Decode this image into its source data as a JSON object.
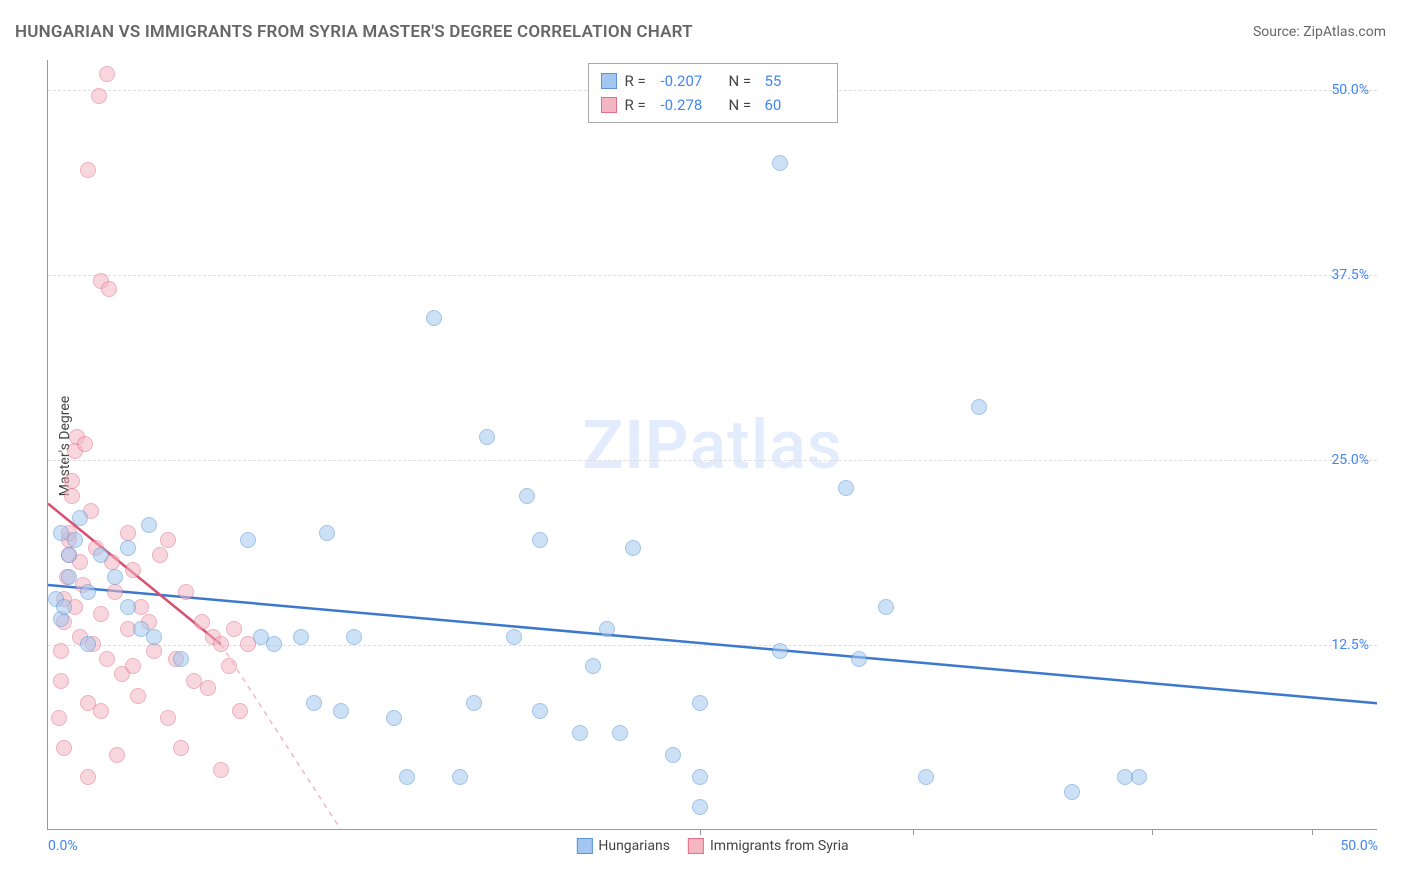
{
  "title": "HUNGARIAN VS IMMIGRANTS FROM SYRIA MASTER'S DEGREE CORRELATION CHART",
  "source": "Source: ZipAtlas.com",
  "watermark": "ZIPatlas",
  "y_axis_label": "Master's Degree",
  "chart": {
    "type": "scatter",
    "background_color": "#ffffff",
    "grid_color": "#dddddd",
    "axis_color": "#999999",
    "label_color": "#4285f4",
    "xlim": [
      0,
      50
    ],
    "ylim": [
      0,
      52
    ],
    "x_ticks": [
      0,
      50
    ],
    "x_tick_labels": [
      "0.0%",
      "50.0%"
    ],
    "x_minor_ticks": [
      24.5,
      32.5,
      41.5,
      47.5
    ],
    "y_ticks": [
      12.5,
      25.0,
      37.5,
      50.0
    ],
    "y_tick_labels": [
      "12.5%",
      "25.0%",
      "37.5%",
      "50.0%"
    ],
    "point_radius": 8,
    "series": [
      {
        "name": "Hungarians",
        "fill_color": "#a3c7f0",
        "stroke_color": "#5a95d6",
        "fill_opacity": 0.55,
        "R": "-0.207",
        "N": "55",
        "trend": {
          "x1": 0,
          "y1": 16.5,
          "x2": 50,
          "y2": 8.5,
          "color": "#3b78ce",
          "width": 2.5
        },
        "points": [
          [
            0.3,
            15.5
          ],
          [
            0.5,
            14.2
          ],
          [
            0.5,
            20.0
          ],
          [
            0.6,
            15.0
          ],
          [
            0.8,
            17.0
          ],
          [
            0.8,
            18.5
          ],
          [
            1.0,
            19.5
          ],
          [
            1.2,
            21.0
          ],
          [
            1.5,
            16.0
          ],
          [
            1.5,
            12.5
          ],
          [
            2.0,
            18.5
          ],
          [
            2.5,
            17.0
          ],
          [
            3.0,
            15.0
          ],
          [
            3.0,
            19.0
          ],
          [
            3.5,
            13.5
          ],
          [
            3.8,
            20.5
          ],
          [
            4.0,
            13.0
          ],
          [
            5.0,
            11.5
          ],
          [
            7.5,
            19.5
          ],
          [
            8.0,
            13.0
          ],
          [
            8.5,
            12.5
          ],
          [
            9.5,
            13.0
          ],
          [
            10.0,
            8.5
          ],
          [
            10.5,
            20.0
          ],
          [
            11.5,
            13.0
          ],
          [
            11.0,
            8.0
          ],
          [
            13.0,
            7.5
          ],
          [
            13.5,
            3.5
          ],
          [
            14.5,
            34.5
          ],
          [
            15.5,
            3.5
          ],
          [
            16.0,
            8.5
          ],
          [
            16.5,
            26.5
          ],
          [
            17.5,
            13.0
          ],
          [
            18.0,
            22.5
          ],
          [
            18.5,
            19.5
          ],
          [
            18.5,
            8.0
          ],
          [
            20.0,
            6.5
          ],
          [
            20.5,
            11.0
          ],
          [
            21.0,
            13.5
          ],
          [
            21.5,
            6.5
          ],
          [
            22.0,
            19.0
          ],
          [
            23.5,
            5.0
          ],
          [
            24.5,
            3.5
          ],
          [
            24.5,
            1.5
          ],
          [
            27.5,
            12.0
          ],
          [
            27.5,
            45.0
          ],
          [
            30.5,
            11.5
          ],
          [
            30.0,
            23.0
          ],
          [
            31.5,
            15.0
          ],
          [
            33.0,
            3.5
          ],
          [
            35.0,
            28.5
          ],
          [
            38.5,
            2.5
          ],
          [
            40.5,
            3.5
          ],
          [
            41.0,
            3.5
          ],
          [
            24.5,
            8.5
          ]
        ]
      },
      {
        "name": "Immigrants from Syria",
        "fill_color": "#f4b6c2",
        "stroke_color": "#e36f8a",
        "fill_opacity": 0.55,
        "R": "-0.278",
        "N": "60",
        "trend": {
          "x1": 0,
          "y1": 22.0,
          "x2": 6.5,
          "y2": 12.5,
          "color": "#d94f70",
          "width": 2.5,
          "dash": {
            "x1": 6.5,
            "y1": 12.5,
            "x2": 11.0,
            "y2": 0,
            "color": "#f4b6c2"
          }
        },
        "points": [
          [
            0.4,
            7.5
          ],
          [
            0.5,
            10.0
          ],
          [
            0.5,
            12.0
          ],
          [
            0.6,
            14.0
          ],
          [
            0.6,
            15.5
          ],
          [
            0.7,
            17.0
          ],
          [
            0.8,
            18.5
          ],
          [
            0.8,
            19.5
          ],
          [
            0.8,
            20.0
          ],
          [
            0.9,
            22.5
          ],
          [
            0.9,
            23.5
          ],
          [
            1.0,
            15.0
          ],
          [
            1.0,
            25.5
          ],
          [
            1.1,
            26.5
          ],
          [
            1.2,
            13.0
          ],
          [
            1.2,
            18.0
          ],
          [
            1.3,
            16.5
          ],
          [
            1.4,
            26.0
          ],
          [
            1.5,
            8.5
          ],
          [
            1.5,
            44.5
          ],
          [
            1.6,
            21.5
          ],
          [
            1.7,
            12.5
          ],
          [
            1.8,
            19.0
          ],
          [
            1.9,
            49.5
          ],
          [
            2.0,
            37.0
          ],
          [
            2.0,
            14.5
          ],
          [
            2.2,
            51.0
          ],
          [
            2.2,
            11.5
          ],
          [
            2.3,
            36.5
          ],
          [
            2.4,
            18.0
          ],
          [
            2.5,
            16.0
          ],
          [
            2.6,
            5.0
          ],
          [
            2.8,
            10.5
          ],
          [
            3.0,
            13.5
          ],
          [
            3.0,
            20.0
          ],
          [
            3.2,
            11.0
          ],
          [
            3.2,
            17.5
          ],
          [
            3.4,
            9.0
          ],
          [
            3.5,
            15.0
          ],
          [
            3.8,
            14.0
          ],
          [
            4.0,
            12.0
          ],
          [
            4.2,
            18.5
          ],
          [
            4.5,
            7.5
          ],
          [
            4.5,
            19.5
          ],
          [
            4.8,
            11.5
          ],
          [
            5.0,
            5.5
          ],
          [
            5.2,
            16.0
          ],
          [
            5.5,
            10.0
          ],
          [
            5.8,
            14.0
          ],
          [
            6.0,
            9.5
          ],
          [
            6.2,
            13.0
          ],
          [
            6.5,
            4.0
          ],
          [
            6.5,
            12.5
          ],
          [
            6.8,
            11.0
          ],
          [
            7.0,
            13.5
          ],
          [
            7.2,
            8.0
          ],
          [
            7.5,
            12.5
          ],
          [
            1.5,
            3.5
          ],
          [
            2.0,
            8.0
          ],
          [
            0.6,
            5.5
          ]
        ]
      }
    ]
  },
  "legend_top": [
    {
      "swatch_fill": "#a3c7f0",
      "swatch_stroke": "#5a95d6",
      "R_label": "R =",
      "R": "-0.207",
      "N_label": "N =",
      "N": "55"
    },
    {
      "swatch_fill": "#f4b6c2",
      "swatch_stroke": "#e36f8a",
      "R_label": "R =",
      "R": "-0.278",
      "N_label": "N =",
      "N": "60"
    }
  ],
  "legend_bottom": [
    {
      "swatch_fill": "#a3c7f0",
      "swatch_stroke": "#5a95d6",
      "label": "Hungarians"
    },
    {
      "swatch_fill": "#f4b6c2",
      "swatch_stroke": "#e36f8a",
      "label": "Immigrants from Syria"
    }
  ]
}
